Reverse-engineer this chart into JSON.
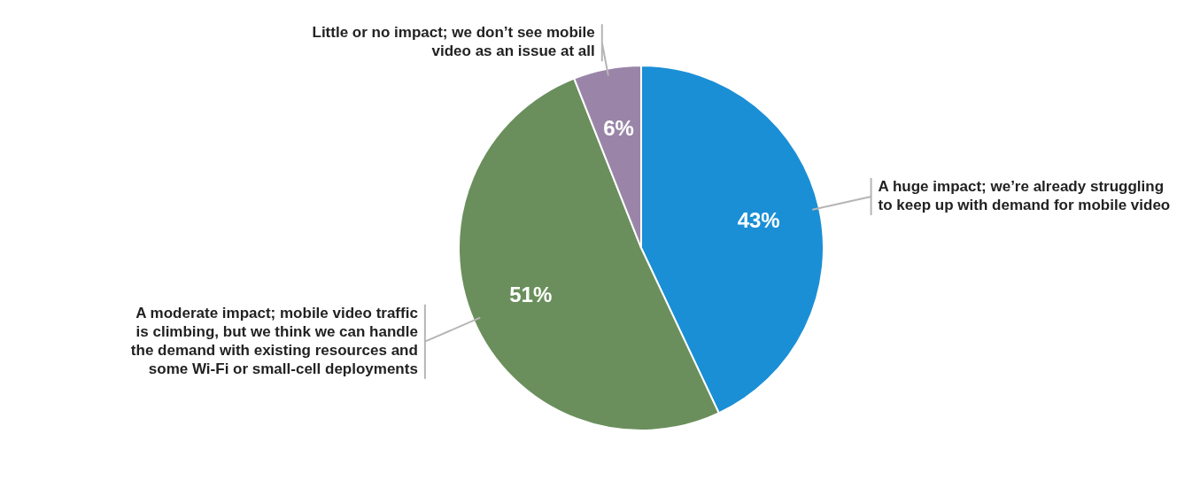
{
  "chart_data": {
    "type": "pie",
    "categories": [
      "A huge impact; we’re already struggling to keep up with demand for mobile video",
      "A moderate impact; mobile video traffic is climbing, but we think we can handle the demand with existing resources and some Wi-Fi or small-cell deployments",
      "Little or no impact; we don’t see mobile video as an issue at all"
    ],
    "values": [
      43,
      51,
      6
    ],
    "value_labels": [
      "43%",
      "51%",
      "6%"
    ],
    "colors": [
      "#1a8fd6",
      "#6a8f5c",
      "#9a85a8"
    ],
    "legend": false
  }
}
